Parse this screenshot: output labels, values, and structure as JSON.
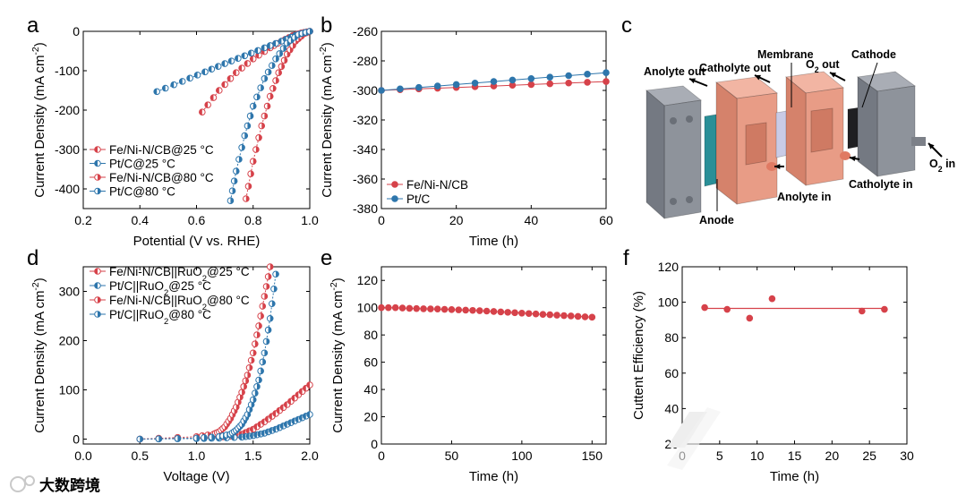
{
  "watermark": "大数跨境",
  "colors": {
    "red": "#d6424a",
    "blue": "#2e76ac"
  },
  "chart_data": [
    {
      "panel": "a",
      "type": "line",
      "xlabel": "Potential (V vs. RHE)",
      "ylabel": "Current Density (mA cm⁻²)",
      "xlim": [
        0.2,
        1.0
      ],
      "ylim": [
        -450,
        0
      ],
      "xticks": [
        "0.2",
        "0.4",
        "0.6",
        "0.8",
        "1.0"
      ],
      "yticks": [
        "0",
        "-100",
        "-200",
        "-300",
        "-400"
      ],
      "legend_position": "bottom-left",
      "series": [
        {
          "name": "Fe/Ni-N/CB@25 °C",
          "color": "red",
          "marker": "half-left",
          "x": [
            0.62,
            0.68,
            0.74,
            0.8,
            0.86,
            0.9,
            0.94,
            0.97,
            1.0
          ],
          "y": [
            -205,
            -150,
            -105,
            -70,
            -42,
            -25,
            -11,
            -4,
            0
          ]
        },
        {
          "name": "Pt/C@25 °C",
          "color": "blue",
          "marker": "half-left",
          "x": [
            0.46,
            0.55,
            0.63,
            0.7,
            0.77,
            0.84,
            0.9,
            0.95,
            1.0
          ],
          "y": [
            -153,
            -127,
            -103,
            -82,
            -62,
            -42,
            -25,
            -10,
            0
          ]
        },
        {
          "name": "Fe/Ni-N/CB@80 °C",
          "color": "red",
          "marker": "half-right",
          "x": [
            0.775,
            0.8,
            0.83,
            0.86,
            0.89,
            0.92,
            0.95,
            0.98,
            1.0
          ],
          "y": [
            -425,
            -330,
            -240,
            -165,
            -105,
            -58,
            -25,
            -6,
            0
          ]
        },
        {
          "name": "Pt/C@80 °C",
          "color": "blue",
          "marker": "half-right",
          "x": [
            0.72,
            0.74,
            0.77,
            0.8,
            0.84,
            0.88,
            0.92,
            0.96,
            1.0
          ],
          "y": [
            -430,
            -355,
            -265,
            -190,
            -120,
            -70,
            -30,
            -8,
            0
          ]
        }
      ]
    },
    {
      "panel": "b",
      "type": "line",
      "xlabel": "Time (h)",
      "ylabel": "Current Density (mA cm⁻²)",
      "xlim": [
        0,
        60
      ],
      "ylim": [
        -380,
        -260
      ],
      "xticks": [
        "0",
        "20",
        "40",
        "60"
      ],
      "yticks": [
        "-260",
        "-280",
        "-300",
        "-320",
        "-340",
        "-360",
        "-380"
      ],
      "legend_position": "bottom-left",
      "series": [
        {
          "name": "Fe/Ni-N/CB",
          "color": "red",
          "x": [
            0,
            10,
            20,
            30,
            40,
            50,
            60
          ],
          "y": [
            -300,
            -299,
            -298,
            -297,
            -296,
            -295,
            -294
          ]
        },
        {
          "name": "Pt/C",
          "color": "blue",
          "x": [
            0,
            10,
            20,
            30,
            40,
            50,
            60
          ],
          "y": [
            -300,
            -298,
            -296,
            -294,
            -292,
            -290,
            -288
          ]
        }
      ]
    },
    {
      "panel": "d",
      "type": "line",
      "xlabel": "Voltage (V)",
      "ylabel": "Current Density (mA cm⁻²)",
      "xlim": [
        0.0,
        2.0
      ],
      "ylim": [
        -10,
        350
      ],
      "xticks": [
        "0.0",
        "0.5",
        "1.0",
        "1.5",
        "2.0"
      ],
      "yticks": [
        "0",
        "100",
        "200",
        "300"
      ],
      "legend_position": "top-left",
      "series": [
        {
          "name": "Fe/Ni-N/CB||RuO₂@25 °C",
          "color": "red",
          "marker": "half-left",
          "x": [
            0.5,
            1.0,
            1.2,
            1.3,
            1.4,
            1.5,
            1.6,
            1.7,
            1.8,
            1.9,
            2.0
          ],
          "y": [
            0,
            2,
            4,
            6,
            10,
            20,
            35,
            52,
            70,
            90,
            110
          ]
        },
        {
          "name": "Pt/C||RuO₂@25 °C",
          "color": "blue",
          "marker": "half-left",
          "x": [
            0.5,
            1.0,
            1.2,
            1.4,
            1.5,
            1.6,
            1.7,
            1.8,
            1.9,
            2.0
          ],
          "y": [
            0,
            1,
            2,
            4,
            7,
            12,
            20,
            30,
            40,
            50
          ]
        },
        {
          "name": "Fe/Ni-N/CB||RuO₂@80 °C",
          "color": "red",
          "marker": "half-right",
          "x": [
            0.5,
            1.0,
            1.15,
            1.2,
            1.25,
            1.3,
            1.35,
            1.4,
            1.45,
            1.5,
            1.55,
            1.6,
            1.65
          ],
          "y": [
            0,
            5,
            10,
            15,
            25,
            42,
            65,
            95,
            130,
            175,
            230,
            290,
            350
          ]
        },
        {
          "name": "Pt/C||RuO₂@80 °C",
          "color": "blue",
          "marker": "half-right",
          "x": [
            0.5,
            1.0,
            1.2,
            1.3,
            1.35,
            1.4,
            1.45,
            1.5,
            1.55,
            1.6,
            1.65,
            1.7
          ],
          "y": [
            0,
            2,
            5,
            10,
            18,
            30,
            50,
            80,
            120,
            175,
            245,
            335
          ]
        }
      ]
    },
    {
      "panel": "e",
      "type": "line",
      "xlabel": "Time (h)",
      "ylabel": "Current Density (mA cm⁻²)",
      "xlim": [
        0,
        160
      ],
      "ylim": [
        0,
        130
      ],
      "xticks": [
        "0",
        "50",
        "100",
        "150"
      ],
      "yticks": [
        "0",
        "20",
        "40",
        "60",
        "80",
        "100",
        "120"
      ],
      "series": [
        {
          "name": "",
          "color": "red",
          "x": [
            0,
            10,
            20,
            30,
            40,
            50,
            60,
            70,
            80,
            90,
            100,
            110,
            120,
            130,
            140,
            150
          ],
          "y": [
            100,
            100,
            99.5,
            99.2,
            99,
            98.6,
            98.2,
            97.8,
            97.2,
            96.6,
            96,
            95.4,
            94.8,
            94.2,
            93.6,
            93
          ]
        }
      ]
    },
    {
      "panel": "f",
      "type": "scatter",
      "xlabel": "Time (h)",
      "ylabel": "Cuttent Efficiency (%)",
      "xlim": [
        0,
        30
      ],
      "ylim": [
        20,
        120
      ],
      "xticks": [
        "0",
        "5",
        "10",
        "15",
        "20",
        "25",
        "30"
      ],
      "yticks": [
        "20",
        "40",
        "60",
        "80",
        "100",
        "120"
      ],
      "series": [
        {
          "name": "",
          "color": "red",
          "x": [
            3,
            6,
            9,
            12,
            24,
            27
          ],
          "y": [
            97,
            96,
            91,
            102,
            95,
            96
          ]
        }
      ],
      "reference_line": {
        "y": 96.5,
        "x_range": [
          3,
          27
        ]
      }
    }
  ],
  "diagram_c": {
    "panel": "c",
    "labels": {
      "membrane": "Membrane",
      "anolyte_out": "Anolyte out",
      "catholyte_out": "Catholyte out",
      "o2_out": "O₂ out",
      "cathode": "Cathode",
      "o2_in": "O₂ in",
      "catholyte_in": "Catholyte in",
      "anolyte_in": "Anolyte in",
      "anode": "Anode"
    }
  }
}
